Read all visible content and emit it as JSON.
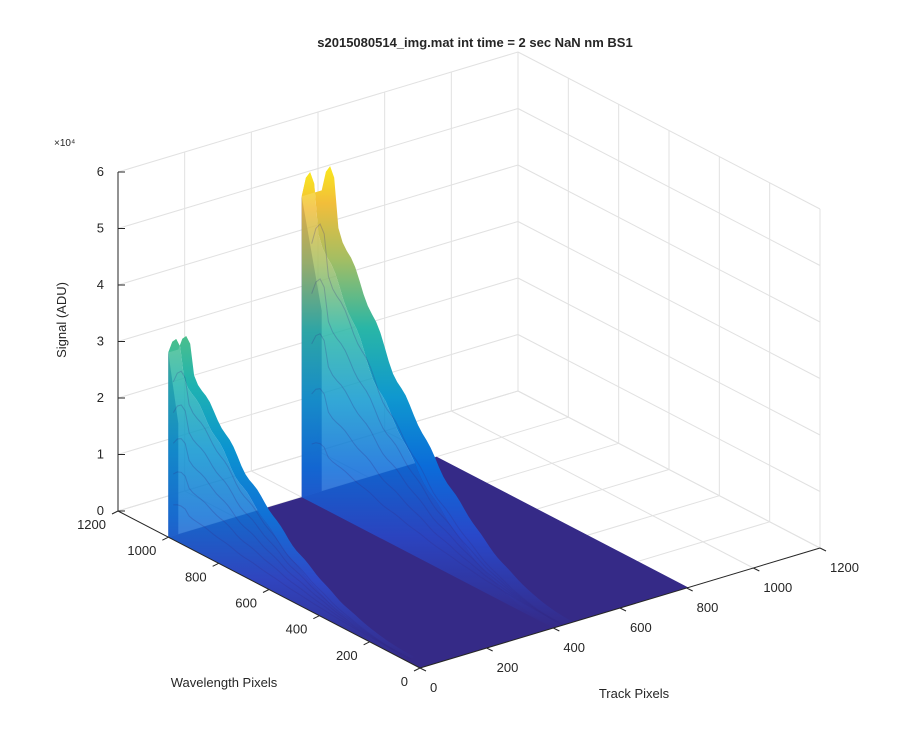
{
  "figure": {
    "title": "s2015080514_img.mat int time = 2 sec  NaN nm BS1",
    "exponent": "×10⁴"
  },
  "chart_data": {
    "type": "surface",
    "title": "s2015080514_img.mat int time = 2 sec  NaN nm BS1",
    "xlabel": "Track Pixels",
    "ylabel": "Wavelength Pixels",
    "zlabel": "Signal (ADU)",
    "xlim": [
      0,
      1200
    ],
    "ylim": [
      0,
      1200
    ],
    "zlim": [
      0,
      60000
    ],
    "x_ticks": [
      "0",
      "200",
      "400",
      "600",
      "800",
      "1000",
      "1200"
    ],
    "y_ticks": [
      "0",
      "200",
      "400",
      "600",
      "800",
      "1000",
      "1200"
    ],
    "z_ticks": [
      "0",
      "1",
      "2",
      "3",
      "4",
      "5",
      "6"
    ],
    "z_exponent": 4,
    "grid": true,
    "colormap": "parula",
    "peaks": [
      {
        "track_start": 0,
        "track_end": 30,
        "wavelength_max": 1000,
        "wavelength_min": 60,
        "peak_signal": 35000
      },
      {
        "track_start": 400,
        "track_end": 460,
        "wavelength_max": 1000,
        "wavelength_min": 0,
        "peak_signal": 57000
      }
    ]
  },
  "colors": {
    "base": "#352a87",
    "grid": "#e1e1e1",
    "axis": "#262626"
  }
}
